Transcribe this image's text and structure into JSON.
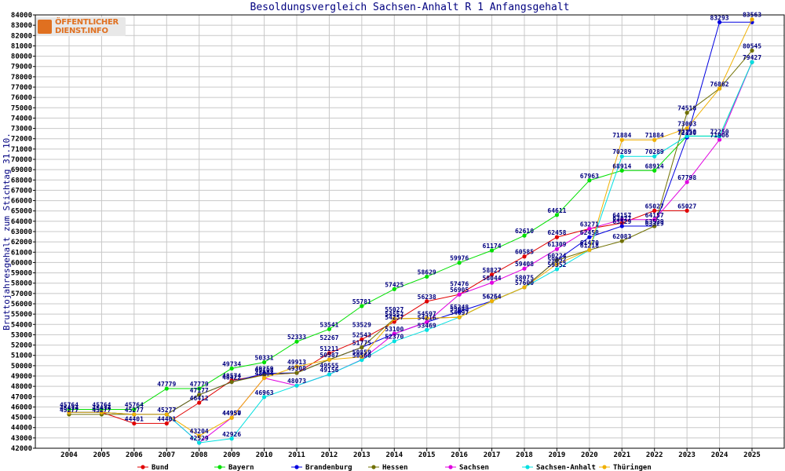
{
  "chart_data": {
    "type": "line",
    "title": "Besoldungsvergleich Sachsen-Anhalt R 1 Anfangsgehalt",
    "ylabel": "Bruttojahresgehalt zum Stichtag 31.10.",
    "xlabel": "",
    "x": [
      2004,
      2005,
      2006,
      2007,
      2008,
      2009,
      2010,
      2011,
      2012,
      2013,
      2014,
      2015,
      2016,
      2017,
      2018,
      2019,
      2020,
      2021,
      2022,
      2023,
      2024,
      2025
    ],
    "ylim": [
      42000,
      84000
    ],
    "yticks": [
      42000,
      43000,
      44000,
      45000,
      46000,
      47000,
      48000,
      49000,
      50000,
      51000,
      52000,
      53000,
      54000,
      55000,
      56000,
      57000,
      58000,
      59000,
      60000,
      61000,
      62000,
      63000,
      64000,
      65000,
      66000,
      67000,
      68000,
      69000,
      70000,
      71000,
      72000,
      73000,
      74000,
      75000,
      76000,
      77000,
      78000,
      79000,
      80000,
      81000,
      82000,
      83000,
      84000
    ],
    "grid": true,
    "legend_position": "bottom",
    "series": [
      {
        "name": "Bund",
        "color": "#e00000",
        "values": [
          45474,
          45474,
          44401,
          44401,
          46412,
          48574,
          49105,
          49300,
          51211,
          52543,
          54257,
          56238,
          56905,
          58827,
          60585,
          62458,
          63271,
          63827,
          65027,
          65027,
          null,
          null
        ]
      },
      {
        "name": "Bayern",
        "color": "#00e000",
        "values": [
          45764,
          45764,
          45764,
          47779,
          47779,
          49734,
          50331,
          52333,
          53541,
          55781,
          57425,
          58629,
          59976,
          61174,
          62610,
          64611,
          67963,
          68914,
          68914,
          72250,
          72250,
          79427
        ]
      },
      {
        "name": "Brandenburg",
        "color": "#0000e0",
        "values": [
          45474,
          45474,
          45277,
          45277,
          47177,
          48422,
          49259,
          49308,
          50587,
          51775,
          53100,
          54216,
          55248,
          56264,
          57600,
          60224,
          62458,
          63529,
          63529,
          72130,
          83293,
          83293
        ]
      },
      {
        "name": "Hessen",
        "color": "#707000",
        "values": [
          45277,
          45277,
          45277,
          45277,
          47177,
          48422,
          49108,
          49308,
          50587,
          51775,
          54557,
          54597,
          54697,
          56254,
          57600,
          60224,
          61218,
          62083,
          63529,
          74518,
          76862,
          80545
        ]
      },
      {
        "name": "Sachsen",
        "color": "#e000e0",
        "values": [
          45474,
          45474,
          45277,
          45277,
          42529,
          44957,
          48804,
          48073,
          49156,
          50587,
          53100,
          54216,
          56905,
          58044,
          59408,
          61309,
          63271,
          64157,
          64157,
          67798,
          71906,
          79427
        ]
      },
      {
        "name": "Sachsen-Anhalt",
        "color": "#00e0e0",
        "values": [
          45474,
          45474,
          45277,
          45277,
          42529,
          42926,
          46963,
          48073,
          49156,
          50560,
          52370,
          53469,
          54697,
          56264,
          57600,
          59352,
          61218,
          70289,
          70289,
          72250,
          72250,
          79427
        ]
      },
      {
        "name": "Thüringen",
        "color": "#f0b000",
        "values": [
          45474,
          45474,
          45277,
          45277,
          43204,
          44950,
          48804,
          49913,
          50587,
          50859,
          54557,
          54597,
          54697,
          56264,
          57600,
          59852,
          61218,
          71884,
          71884,
          73003,
          76862,
          83563
        ]
      }
    ],
    "point_labels": [
      {
        "x": 2004,
        "text": "45764"
      },
      {
        "x": 2004,
        "text": "45474"
      },
      {
        "x": 2004,
        "text": "45277"
      },
      {
        "x": 2005,
        "text": "45764"
      },
      {
        "x": 2005,
        "text": "45474"
      },
      {
        "x": 2005,
        "text": "45277"
      },
      {
        "x": 2006,
        "text": "45764"
      },
      {
        "x": 2006,
        "text": "45277"
      },
      {
        "x": 2006,
        "text": "44401"
      },
      {
        "x": 2007,
        "text": "47779"
      },
      {
        "x": 2007,
        "text": "45277"
      },
      {
        "x": 2007,
        "text": "44401"
      },
      {
        "x": 2008,
        "text": "47779"
      },
      {
        "x": 2008,
        "text": "47177"
      },
      {
        "x": 2008,
        "text": "46412"
      },
      {
        "x": 2008,
        "text": "43204"
      },
      {
        "x": 2008,
        "text": "42529"
      },
      {
        "x": 2009,
        "text": "49734"
      },
      {
        "x": 2009,
        "text": "48574"
      },
      {
        "x": 2009,
        "text": "48422"
      },
      {
        "x": 2009,
        "text": "44950"
      },
      {
        "x": 2009,
        "text": "44957"
      },
      {
        "x": 2009,
        "text": "42926"
      },
      {
        "x": 2010,
        "text": "50331"
      },
      {
        "x": 2010,
        "text": "49259"
      },
      {
        "x": 2010,
        "text": "49108"
      },
      {
        "x": 2010,
        "text": "48804"
      },
      {
        "x": 2010,
        "text": "46963"
      },
      {
        "x": 2011,
        "text": "52333"
      },
      {
        "x": 2011,
        "text": "49913"
      },
      {
        "x": 2011,
        "text": "49308"
      },
      {
        "x": 2011,
        "text": "48073"
      },
      {
        "x": 2012,
        "text": "53541"
      },
      {
        "x": 2012,
        "text": "52267"
      },
      {
        "x": 2012,
        "text": "51211"
      },
      {
        "x": 2012,
        "text": "50587"
      },
      {
        "x": 2012,
        "text": "49555"
      },
      {
        "x": 2012,
        "text": "49156"
      },
      {
        "x": 2013,
        "text": "55781"
      },
      {
        "x": 2013,
        "text": "53529"
      },
      {
        "x": 2013,
        "text": "52543"
      },
      {
        "x": 2013,
        "text": "51775"
      },
      {
        "x": 2013,
        "text": "50859"
      },
      {
        "x": 2013,
        "text": "50560"
      },
      {
        "x": 2014,
        "text": "57425"
      },
      {
        "x": 2014,
        "text": "55027"
      },
      {
        "x": 2014,
        "text": "54557"
      },
      {
        "x": 2014,
        "text": "54257"
      },
      {
        "x": 2014,
        "text": "53100"
      },
      {
        "x": 2014,
        "text": "52370"
      },
      {
        "x": 2015,
        "text": "58629"
      },
      {
        "x": 2015,
        "text": "56238"
      },
      {
        "x": 2015,
        "text": "54597"
      },
      {
        "x": 2015,
        "text": "54216"
      },
      {
        "x": 2015,
        "text": "53469"
      },
      {
        "x": 2016,
        "text": "59976"
      },
      {
        "x": 2016,
        "text": "57476"
      },
      {
        "x": 2016,
        "text": "56905"
      },
      {
        "x": 2016,
        "text": "55248"
      },
      {
        "x": 2016,
        "text": "55043"
      },
      {
        "x": 2016,
        "text": "54697"
      },
      {
        "x": 2017,
        "text": "61174"
      },
      {
        "x": 2017,
        "text": "58827"
      },
      {
        "x": 2017,
        "text": "58044"
      },
      {
        "x": 2017,
        "text": "56264"
      },
      {
        "x": 2017,
        "text": "56254"
      },
      {
        "x": 2018,
        "text": "62610"
      },
      {
        "x": 2018,
        "text": "60585"
      },
      {
        "x": 2018,
        "text": "59408"
      },
      {
        "x": 2018,
        "text": "58075"
      },
      {
        "x": 2018,
        "text": "57600"
      },
      {
        "x": 2019,
        "text": "64611"
      },
      {
        "x": 2019,
        "text": "62458"
      },
      {
        "x": 2019,
        "text": "61309"
      },
      {
        "x": 2019,
        "text": "60224"
      },
      {
        "x": 2019,
        "text": "59852"
      },
      {
        "x": 2019,
        "text": "59352"
      },
      {
        "x": 2020,
        "text": "67963"
      },
      {
        "x": 2020,
        "text": "63271"
      },
      {
        "x": 2020,
        "text": "62458"
      },
      {
        "x": 2020,
        "text": "61470"
      },
      {
        "x": 2020,
        "text": "61218"
      },
      {
        "x": 2021,
        "text": "71884"
      },
      {
        "x": 2021,
        "text": "70289"
      },
      {
        "x": 2021,
        "text": "68914"
      },
      {
        "x": 2021,
        "text": "64157"
      },
      {
        "x": 2021,
        "text": "63827"
      },
      {
        "x": 2021,
        "text": "63529"
      },
      {
        "x": 2021,
        "text": "62083"
      },
      {
        "x": 2022,
        "text": "71884"
      },
      {
        "x": 2022,
        "text": "70289"
      },
      {
        "x": 2022,
        "text": "68914"
      },
      {
        "x": 2022,
        "text": "65027"
      },
      {
        "x": 2022,
        "text": "64157"
      },
      {
        "x": 2022,
        "text": "63529"
      },
      {
        "x": 2022,
        "text": "63329"
      },
      {
        "x": 2023,
        "text": "74518"
      },
      {
        "x": 2023,
        "text": "73003"
      },
      {
        "x": 2023,
        "text": "72250"
      },
      {
        "x": 2023,
        "text": "72130"
      },
      {
        "x": 2023,
        "text": "67798"
      },
      {
        "x": 2023,
        "text": "65027"
      },
      {
        "x": 2024,
        "text": "83293"
      },
      {
        "x": 2024,
        "text": "76862"
      },
      {
        "x": 2024,
        "text": "72250"
      },
      {
        "x": 2024,
        "text": "71906"
      },
      {
        "x": 2025,
        "text": "83563"
      },
      {
        "x": 2025,
        "text": "80545"
      },
      {
        "x": 2025,
        "text": "79427"
      }
    ]
  },
  "logo": {
    "line1": "ÖFFENTLICHER",
    "line2": "DIENST.INFO"
  }
}
